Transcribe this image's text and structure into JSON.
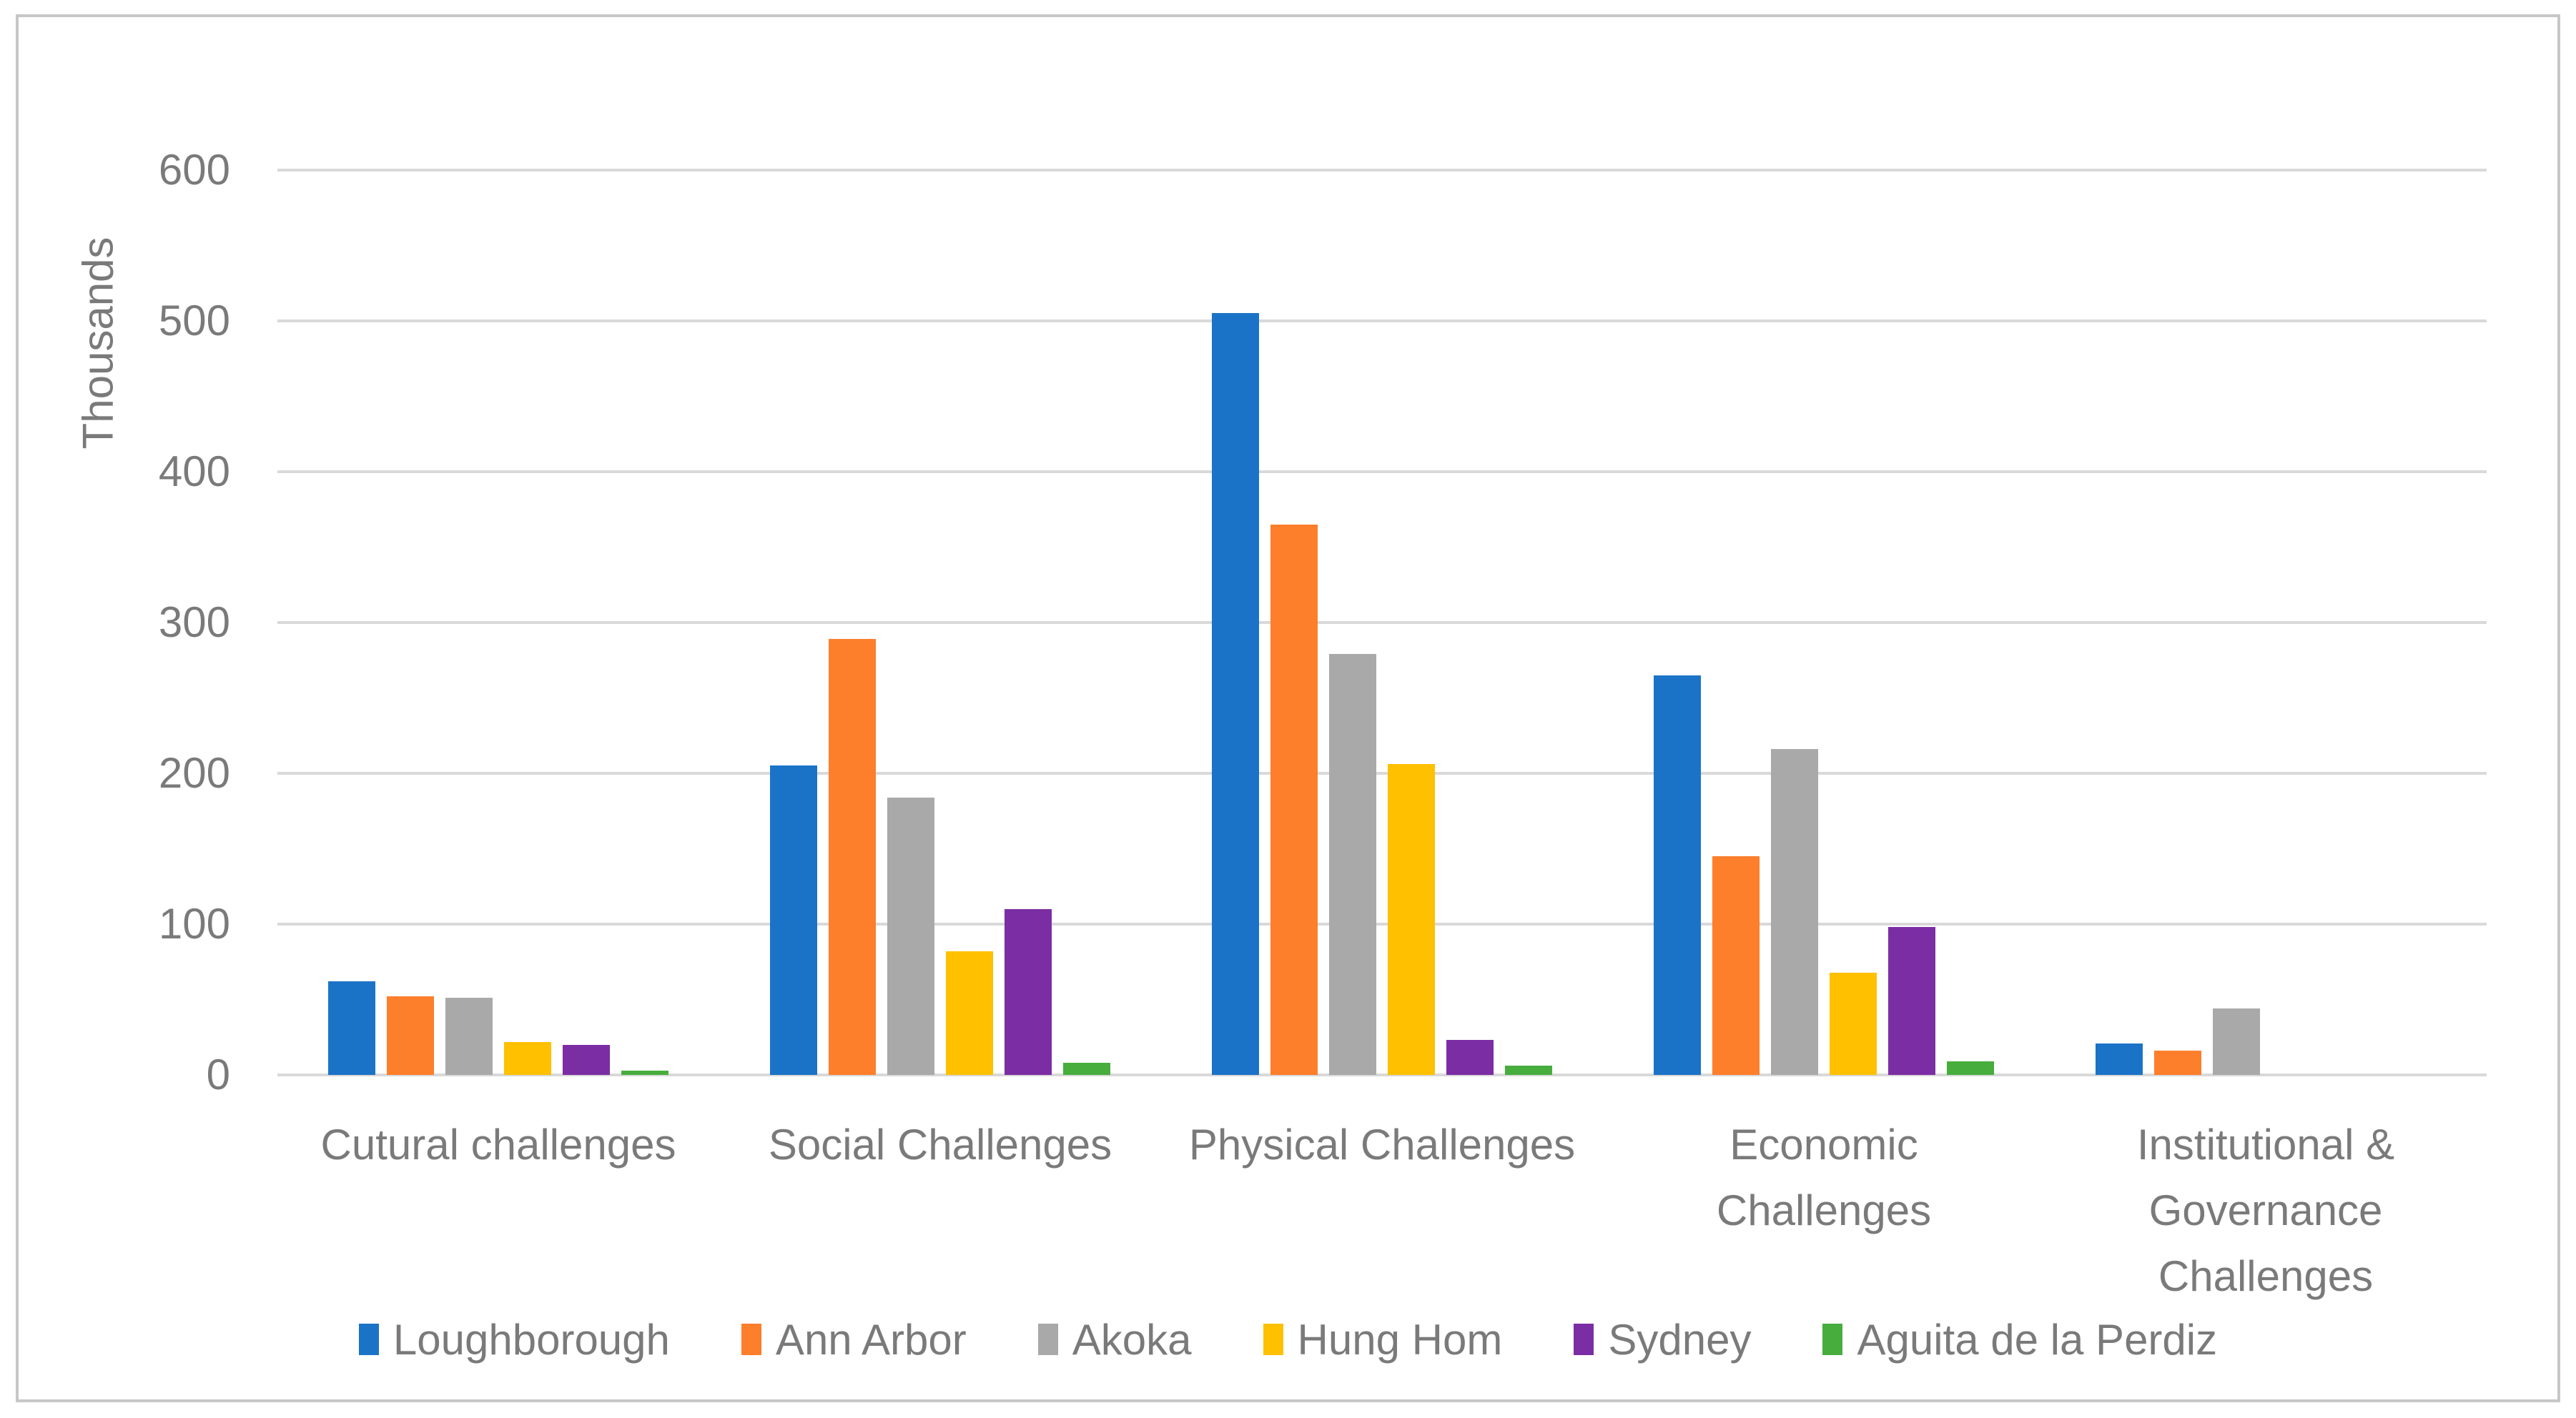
{
  "figure": {
    "background": "#ffffff",
    "border_color": "#c7c7c7",
    "text_color": "#7a7a7a",
    "gridline_color": "#d9d9d9"
  },
  "chart_data": {
    "type": "bar",
    "title": "",
    "xlabel": "",
    "ylabel": "Thousands",
    "ylim": [
      0,
      600
    ],
    "yticks": [
      0,
      100,
      200,
      300,
      400,
      500,
      600
    ],
    "grid": true,
    "legend_position": "bottom",
    "categories": [
      "Cutural challenges",
      "Social Challenges",
      "Physical Challenges",
      "Economic\nChallenges",
      "Institutional &\nGovernance\nChallenges"
    ],
    "series": [
      {
        "name": "Loughborough",
        "color": "#1b73c8",
        "values": [
          62,
          205,
          505,
          265,
          21
        ]
      },
      {
        "name": "Ann Arbor",
        "color": "#fd7e2b",
        "values": [
          52,
          289,
          365,
          145,
          16
        ]
      },
      {
        "name": "Akoka",
        "color": "#a9a9a9",
        "values": [
          51,
          184,
          279,
          216,
          44
        ]
      },
      {
        "name": "Hung Hom",
        "color": "#ffc000",
        "values": [
          22,
          82,
          206,
          68,
          0
        ]
      },
      {
        "name": "Sydney",
        "color": "#7b2da4",
        "values": [
          20,
          110,
          23,
          98,
          0
        ]
      },
      {
        "name": "Aguita de la Perdiz",
        "color": "#47ad3d",
        "values": [
          3,
          8,
          6,
          9,
          0
        ]
      }
    ]
  }
}
